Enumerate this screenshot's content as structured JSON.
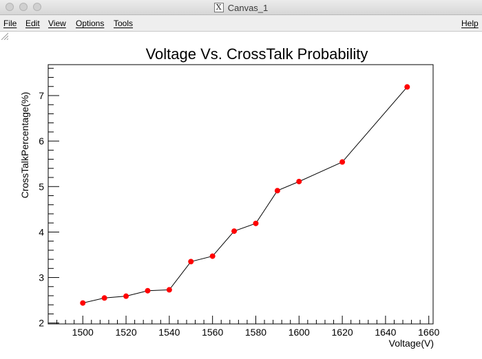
{
  "window": {
    "title": "Canvas_1",
    "app_icon": "x11-icon",
    "x11_glyph": "X"
  },
  "menubar": {
    "items": [
      "File",
      "Edit",
      "View",
      "Options",
      "Tools"
    ],
    "help": "Help"
  },
  "chart_data": {
    "type": "line",
    "title": "Voltage Vs. CrossTalk Probability",
    "xlabel": "Voltage(V)",
    "ylabel": "CrossTalkPercentage(%)",
    "xlim": [
      1484,
      1662
    ],
    "ylim": [
      1.98,
      7.68
    ],
    "x_ticks": [
      1500,
      1520,
      1540,
      1560,
      1580,
      1600,
      1620,
      1640,
      1660
    ],
    "y_ticks": [
      2,
      3,
      4,
      5,
      6,
      7
    ],
    "grid": false,
    "marker_color": "#ff0000",
    "line_color": "#000000",
    "series": [
      {
        "x": [
          1500,
          1510,
          1520,
          1530,
          1540,
          1550,
          1560,
          1570,
          1580,
          1590,
          1600,
          1620,
          1650
        ],
        "y": [
          2.44,
          2.55,
          2.59,
          2.71,
          2.73,
          3.35,
          3.47,
          4.02,
          4.19,
          4.91,
          5.11,
          5.54,
          7.19
        ]
      }
    ]
  }
}
